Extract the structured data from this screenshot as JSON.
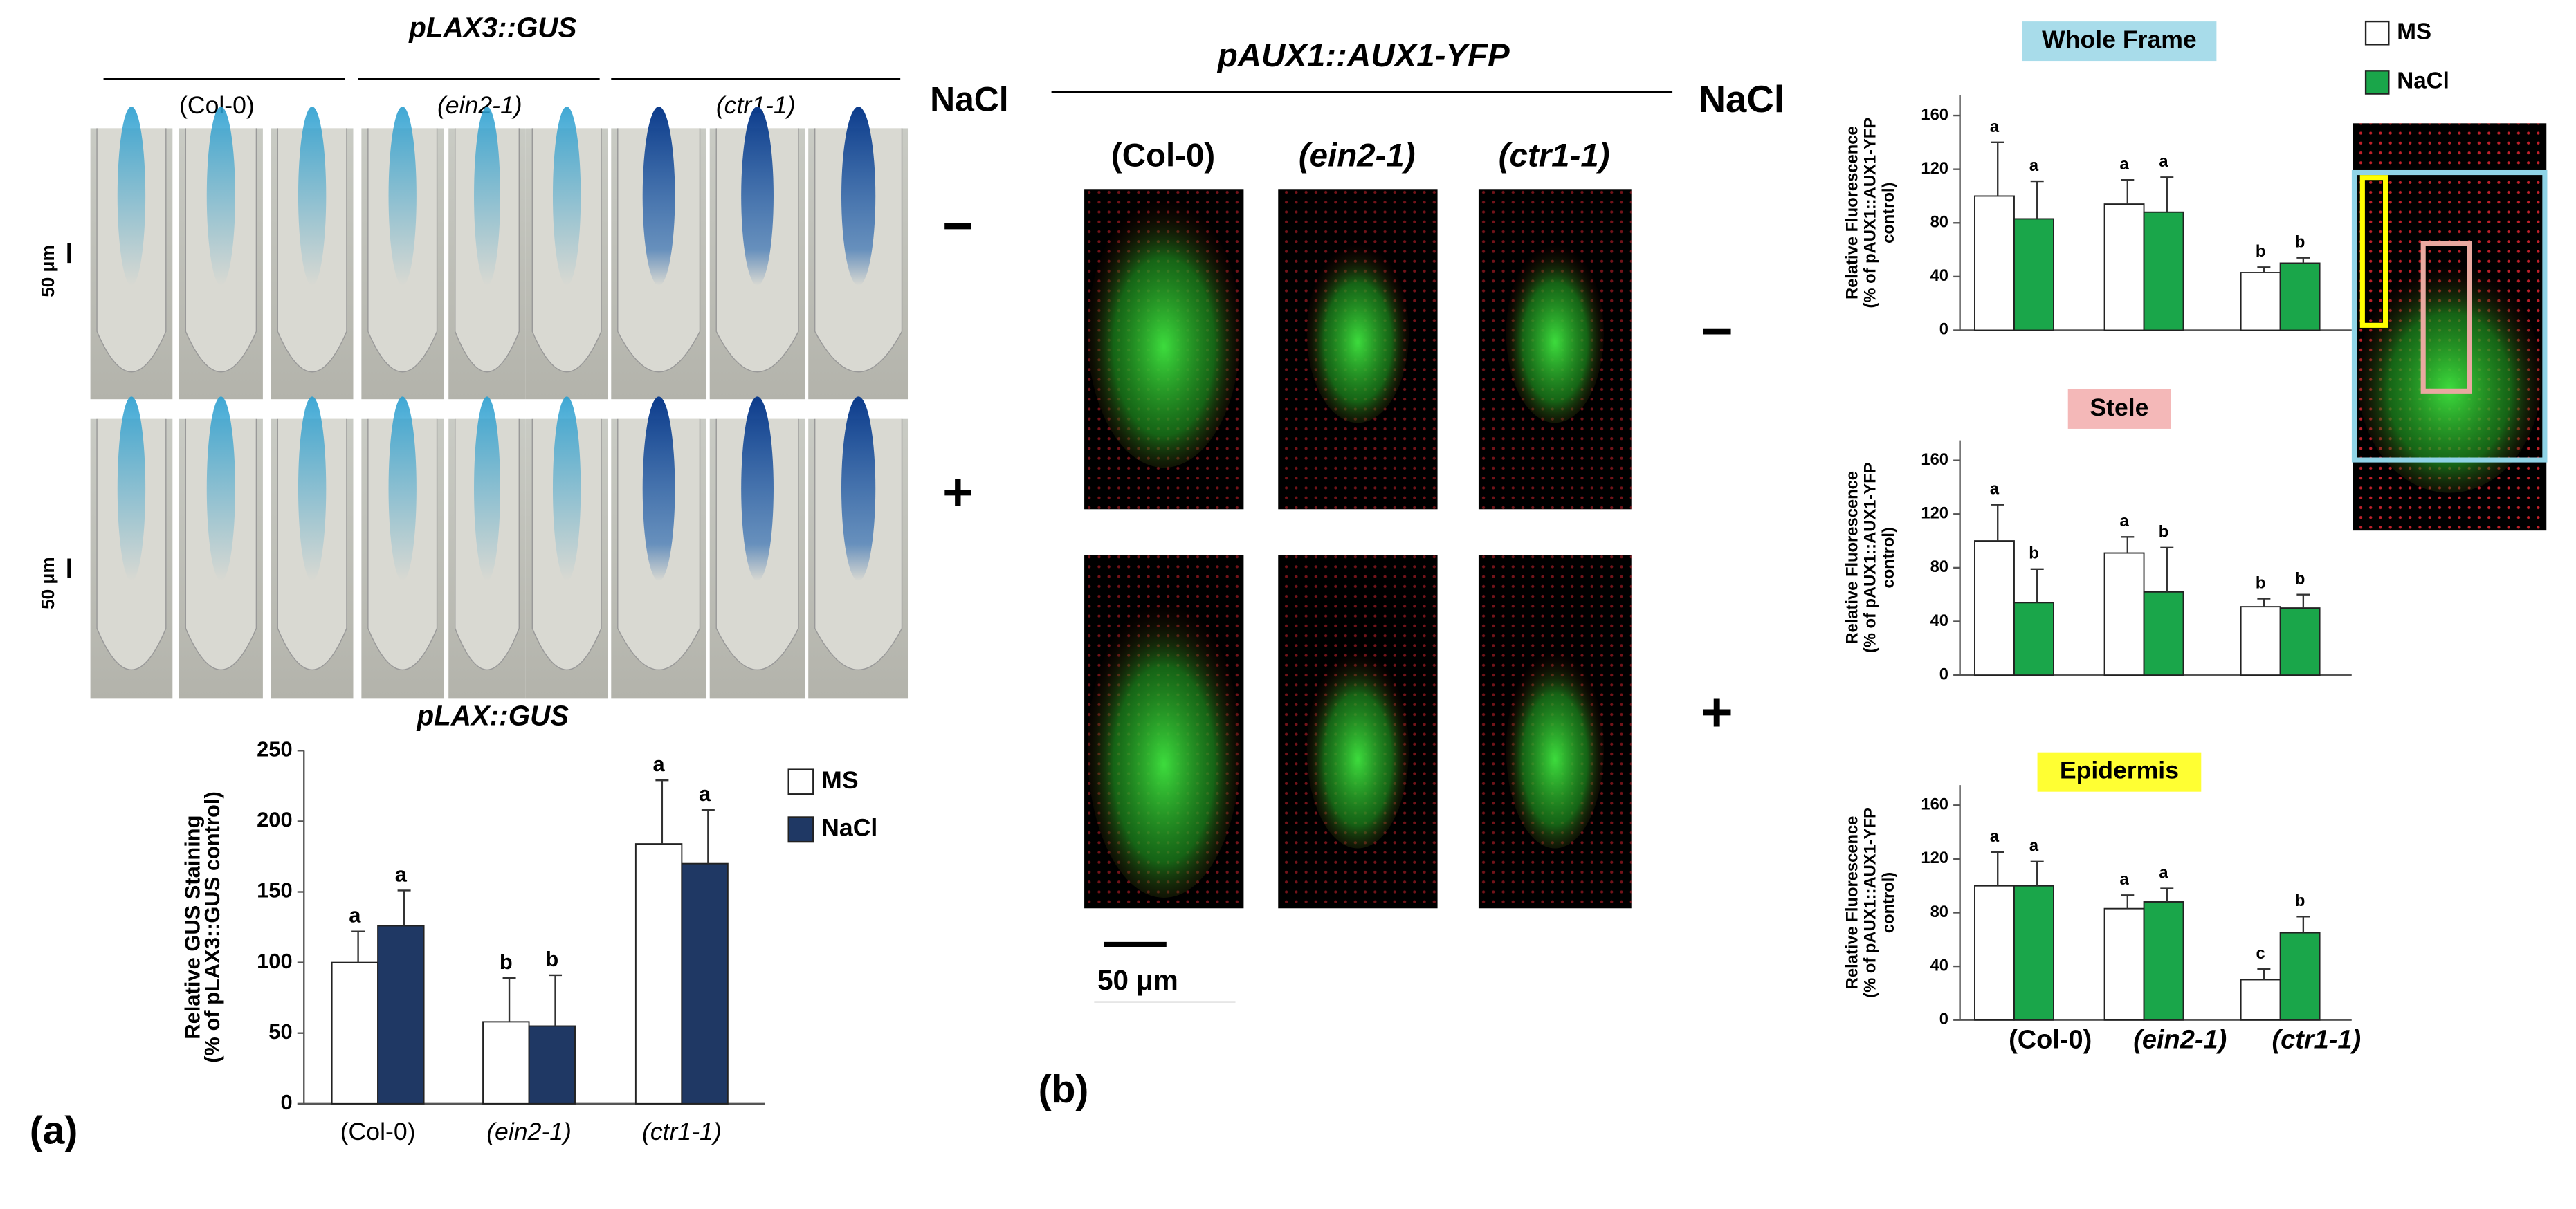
{
  "figure": {
    "panel_a": {
      "title": "pLAX3::GUS",
      "genotypes": [
        "(Col-0)",
        "(ein2-1)",
        "(ctr1-1)"
      ],
      "treatment_header": "NaCl",
      "treatments": [
        "−",
        "+"
      ],
      "scale_bars": [
        "50 μm",
        "50 μm"
      ],
      "panel_label": "(a)"
    },
    "panel_b": {
      "title": "pAUX1::AUX1-YFP",
      "genotypes": [
        "(Col-0)",
        "(ein2-1)",
        "(ctr1-1)"
      ],
      "treatment_header": "NaCl",
      "treatments": [
        "−",
        "+"
      ],
      "scale_bar": "50 μm",
      "panel_label": "(b)"
    }
  },
  "chart_data": [
    {
      "type": "bar",
      "title": "pLAX::GUS",
      "ylabel": [
        "Relative GUS Staining",
        "(% of pLAX3::GUS control)"
      ],
      "categories": [
        "(Col-0)",
        "(ein2-1)",
        "(ctr1-1)"
      ],
      "series": [
        {
          "name": "MS",
          "color": "#ffffff",
          "values": [
            100,
            58,
            184
          ],
          "error": [
            22,
            31,
            45
          ],
          "letters": [
            "a",
            "b",
            "a"
          ]
        },
        {
          "name": "NaCl",
          "color": "#1f3864",
          "values": [
            126,
            55,
            170
          ],
          "error": [
            25,
            36,
            38
          ],
          "letters": [
            "a",
            "b",
            "a"
          ]
        }
      ],
      "ylim": [
        0,
        250
      ],
      "yticks": [
        0,
        50,
        100,
        150,
        200,
        250
      ]
    },
    {
      "type": "bar",
      "title": "Whole Frame",
      "title_background": "#a8dcea",
      "ylabel": [
        "Relative Fluorescence",
        "(% of pAUX1::AUX1-YFP",
        "control)"
      ],
      "categories": [
        null,
        null,
        null
      ],
      "series": [
        {
          "name": "MS",
          "color": "#ffffff",
          "values": [
            100,
            94,
            43
          ],
          "error": [
            40,
            18,
            4
          ],
          "letters": [
            "a",
            "a",
            "b"
          ]
        },
        {
          "name": "NaCl",
          "color": "#1aa64a",
          "values": [
            83,
            88,
            50
          ],
          "error": [
            28,
            26,
            4
          ],
          "letters": [
            "a",
            "a",
            "b"
          ]
        }
      ],
      "ylim": [
        0,
        175
      ],
      "yticks": [
        0,
        40,
        80,
        120,
        160
      ]
    },
    {
      "type": "bar",
      "title": "Stele",
      "title_background": "#f4b8b8",
      "ylabel": [
        "Relative Fluorescence",
        "(% of pAUX1::AUX1-YFP",
        "control)"
      ],
      "categories": [
        null,
        null,
        null
      ],
      "series": [
        {
          "color": "#ffffff",
          "values": [
            100,
            91,
            51
          ],
          "error": [
            27,
            12,
            6
          ],
          "letters": [
            "a",
            "a",
            "b"
          ]
        },
        {
          "color": "#1aa64a",
          "values": [
            54,
            62,
            50
          ],
          "error": [
            25,
            33,
            10
          ],
          "letters": [
            "b",
            "b",
            "b"
          ]
        }
      ],
      "ylim": [
        0,
        175
      ],
      "yticks": [
        0,
        40,
        80,
        120,
        160
      ]
    },
    {
      "type": "bar",
      "title": "Epidermis",
      "title_background": "#ffff33",
      "ylabel": [
        "Relative Fluorescence",
        "(% of pAUX1::AUX1-YFP",
        "control)"
      ],
      "categories": [
        "(Col-0)",
        "(ein2-1)",
        "(ctr1-1)"
      ],
      "series": [
        {
          "color": "#ffffff",
          "values": [
            100,
            83,
            30
          ],
          "error": [
            25,
            10,
            8
          ],
          "letters": [
            "a",
            "a",
            "c"
          ]
        },
        {
          "color": "#1aa64a",
          "values": [
            100,
            88,
            65
          ],
          "error": [
            18,
            10,
            12
          ],
          "letters": [
            "a",
            "a",
            "b"
          ]
        }
      ],
      "ylim": [
        0,
        175
      ],
      "yticks": [
        0,
        40,
        80,
        120,
        160
      ]
    }
  ]
}
